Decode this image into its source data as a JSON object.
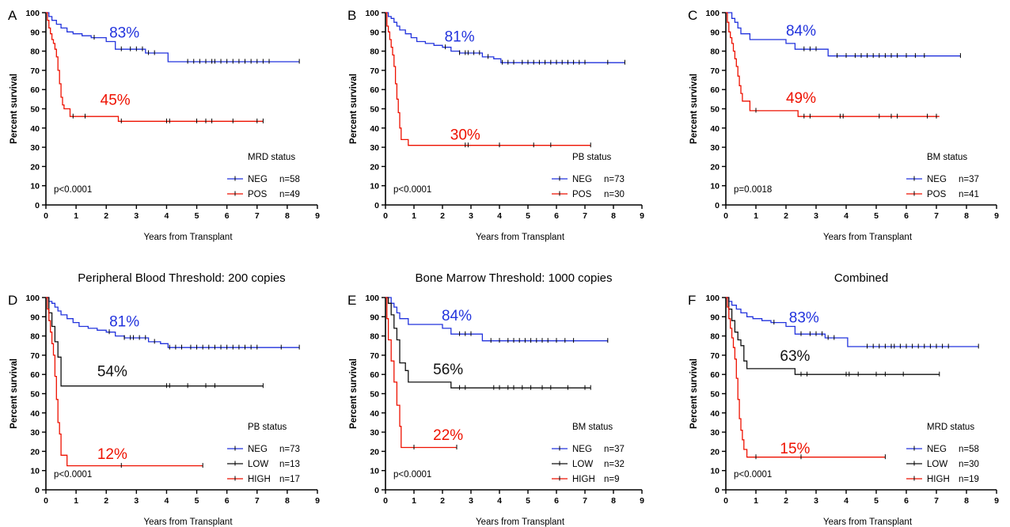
{
  "colors": {
    "NEG": "#2233dd",
    "POS": "#ee1100",
    "HIGH": "#ee1100",
    "LOW": "#111111"
  },
  "chart_data": [
    {
      "panel": "A",
      "type": "line",
      "title": "",
      "xlabel": "Years from Transplant",
      "ylabel": "Percent survival",
      "xlim": [
        0,
        9
      ],
      "ylim": [
        0,
        100
      ],
      "xticks": [
        0,
        1,
        2,
        3,
        4,
        5,
        6,
        7,
        8,
        9
      ],
      "yticks": [
        0,
        10,
        20,
        30,
        40,
        50,
        60,
        70,
        80,
        90,
        100
      ],
      "legend_title": "MRD status",
      "pvalue": "p<0.0001",
      "series": [
        {
          "name": "NEG",
          "n_label": "n=58",
          "color_key": "NEG",
          "annotation": "83%",
          "annotation_at": [
            2.6,
            87
          ],
          "x": [
            0,
            0.1,
            0.2,
            0.35,
            0.5,
            0.7,
            0.9,
            1.2,
            1.5,
            2.0,
            2.3,
            2.6,
            3.3,
            4.05,
            8.4
          ],
          "y": [
            100,
            98,
            96,
            94,
            92,
            90,
            89,
            88,
            87,
            85,
            81,
            81,
            79,
            74.5,
            74.5
          ],
          "censor": [
            1.6,
            2.5,
            2.8,
            3.0,
            3.2,
            3.4,
            3.6,
            4.7,
            4.9,
            5.1,
            5.3,
            5.5,
            5.6,
            5.8,
            6.0,
            6.2,
            6.4,
            6.6,
            6.8,
            7.0,
            7.2,
            7.4,
            8.4
          ]
        },
        {
          "name": "POS",
          "n_label": "n=49",
          "color_key": "POS",
          "annotation": "45%",
          "annotation_at": [
            2.3,
            52
          ],
          "x": [
            0,
            0.05,
            0.1,
            0.15,
            0.2,
            0.25,
            0.3,
            0.35,
            0.4,
            0.45,
            0.5,
            0.55,
            0.6,
            0.7,
            0.8,
            2.4,
            7.2
          ],
          "y": [
            100,
            96,
            92,
            89,
            86,
            84,
            81,
            77,
            70,
            63,
            56,
            52,
            50,
            50,
            46,
            43.5,
            43.5
          ],
          "censor": [
            0.9,
            1.3,
            2.5,
            4.0,
            4.1,
            5.0,
            5.3,
            5.5,
            6.2,
            7.0,
            7.2
          ]
        }
      ]
    },
    {
      "panel": "B",
      "type": "line",
      "title": "",
      "xlabel": "Years from Transplant",
      "ylabel": "Percent survival",
      "xlim": [
        0,
        9
      ],
      "ylim": [
        0,
        100
      ],
      "xticks": [
        0,
        1,
        2,
        3,
        4,
        5,
        6,
        7,
        8,
        9
      ],
      "yticks": [
        0,
        10,
        20,
        30,
        40,
        50,
        60,
        70,
        80,
        90,
        100
      ],
      "legend_title": "PB status",
      "pvalue": "p<0.0001",
      "series": [
        {
          "name": "NEG",
          "n_label": "n=73",
          "color_key": "NEG",
          "annotation": "81%",
          "annotation_at": [
            2.6,
            85
          ],
          "x": [
            0,
            0.1,
            0.2,
            0.3,
            0.4,
            0.5,
            0.7,
            0.9,
            1.1,
            1.4,
            1.7,
            2.0,
            2.3,
            2.6,
            3.0,
            3.4,
            3.8,
            4.05,
            8.4
          ],
          "y": [
            100,
            98,
            97,
            95,
            93,
            91,
            89,
            87,
            85,
            84,
            83,
            82,
            80,
            79,
            79,
            77,
            76,
            74,
            74
          ],
          "censor": [
            2.1,
            2.6,
            2.8,
            2.9,
            3.1,
            3.3,
            3.6,
            4.1,
            4.3,
            4.5,
            4.8,
            5.0,
            5.2,
            5.4,
            5.6,
            5.8,
            6.0,
            6.2,
            6.4,
            6.6,
            6.8,
            7.0,
            7.8,
            8.4
          ]
        },
        {
          "name": "POS",
          "n_label": "n=30",
          "color_key": "POS",
          "annotation": "30%",
          "annotation_at": [
            2.8,
            34
          ],
          "x": [
            0,
            0.05,
            0.1,
            0.15,
            0.2,
            0.25,
            0.3,
            0.35,
            0.4,
            0.45,
            0.5,
            0.55,
            0.6,
            0.8,
            7.2
          ],
          "y": [
            100,
            93,
            90,
            86,
            82,
            78,
            72,
            63,
            55,
            48,
            40,
            34,
            34,
            31,
            31
          ],
          "censor": [
            2.8,
            2.9,
            4.0,
            5.2,
            5.8,
            7.2
          ]
        }
      ]
    },
    {
      "panel": "C",
      "type": "line",
      "title": "",
      "xlabel": "Years from Transplant",
      "ylabel": "Percent survival",
      "xlim": [
        0,
        9
      ],
      "ylim": [
        0,
        100
      ],
      "xticks": [
        0,
        1,
        2,
        3,
        4,
        5,
        6,
        7,
        8,
        9
      ],
      "yticks": [
        0,
        10,
        20,
        30,
        40,
        50,
        60,
        70,
        80,
        90,
        100
      ],
      "legend_title": "BM status",
      "pvalue": "p=0.0018",
      "series": [
        {
          "name": "NEG",
          "n_label": "n=37",
          "color_key": "NEG",
          "annotation": "84%",
          "annotation_at": [
            2.5,
            88
          ],
          "x": [
            0,
            0.2,
            0.3,
            0.4,
            0.5,
            0.6,
            0.8,
            2.0,
            2.3,
            3.4,
            7.8
          ],
          "y": [
            100,
            97,
            95,
            92,
            89,
            89,
            86,
            84,
            81,
            77.5,
            77.5
          ],
          "censor": [
            2.6,
            2.8,
            3.0,
            3.7,
            4.0,
            4.3,
            4.5,
            4.7,
            4.9,
            5.1,
            5.3,
            5.5,
            5.7,
            6.0,
            6.3,
            6.6,
            7.8
          ]
        },
        {
          "name": "POS",
          "n_label": "n=41",
          "color_key": "POS",
          "annotation": "49%",
          "annotation_at": [
            2.5,
            53
          ],
          "x": [
            0,
            0.05,
            0.1,
            0.15,
            0.2,
            0.25,
            0.3,
            0.35,
            0.4,
            0.45,
            0.5,
            0.55,
            0.6,
            0.8,
            2.4,
            7.1
          ],
          "y": [
            100,
            95,
            90,
            87,
            84,
            80,
            76,
            72,
            67,
            62,
            58,
            54,
            54,
            49,
            46,
            46
          ],
          "censor": [
            1.0,
            2.6,
            2.8,
            3.8,
            3.9,
            5.1,
            5.5,
            5.7,
            6.7,
            7.0
          ]
        }
      ]
    },
    {
      "panel": "D",
      "type": "line",
      "title": "Peripheral Blood Threshold: 200 copies",
      "xlabel": "Years from Transplant",
      "ylabel": "Percent survival",
      "xlim": [
        0,
        9
      ],
      "ylim": [
        0,
        100
      ],
      "xticks": [
        0,
        1,
        2,
        3,
        4,
        5,
        6,
        7,
        8,
        9
      ],
      "yticks": [
        0,
        10,
        20,
        30,
        40,
        50,
        60,
        70,
        80,
        90,
        100
      ],
      "legend_title": "PB status",
      "pvalue": "p<0.0001",
      "series": [
        {
          "name": "NEG",
          "n_label": "n=73",
          "color_key": "NEG",
          "annotation": "81%",
          "annotation_at": [
            2.6,
            85
          ],
          "x": [
            0,
            0.1,
            0.2,
            0.3,
            0.4,
            0.5,
            0.7,
            0.9,
            1.1,
            1.4,
            1.7,
            2.0,
            2.3,
            2.6,
            3.0,
            3.4,
            3.8,
            4.05,
            8.4
          ],
          "y": [
            100,
            98,
            97,
            95,
            93,
            91,
            89,
            87,
            85,
            84,
            83,
            82,
            80,
            79,
            79,
            77,
            76,
            74,
            74
          ],
          "censor": [
            2.1,
            2.6,
            2.8,
            2.9,
            3.1,
            3.3,
            3.6,
            4.1,
            4.3,
            4.5,
            4.8,
            5.0,
            5.2,
            5.4,
            5.6,
            5.8,
            6.0,
            6.2,
            6.4,
            6.6,
            6.8,
            7.0,
            7.8,
            8.4
          ]
        },
        {
          "name": "LOW",
          "n_label": "n=13",
          "color_key": "LOW",
          "annotation": "54%",
          "annotation_at": [
            2.2,
            59
          ],
          "x": [
            0,
            0.1,
            0.2,
            0.3,
            0.4,
            0.5,
            7.2
          ],
          "y": [
            100,
            92,
            85,
            77,
            69,
            54,
            54
          ],
          "censor": [
            4.0,
            4.1,
            4.7,
            5.3,
            5.6,
            7.2
          ]
        },
        {
          "name": "HIGH",
          "n_label": "n=17",
          "color_key": "HIGH",
          "annotation": "12%",
          "annotation_at": [
            2.2,
            16
          ],
          "x": [
            0,
            0.05,
            0.1,
            0.15,
            0.2,
            0.25,
            0.3,
            0.35,
            0.4,
            0.45,
            0.5,
            0.7,
            5.2
          ],
          "y": [
            100,
            94,
            88,
            82,
            76,
            70,
            59,
            47,
            35,
            29,
            18,
            12.5,
            12.5
          ],
          "censor": [
            2.5,
            5.2
          ]
        }
      ]
    },
    {
      "panel": "E",
      "type": "line",
      "title": "Bone Marrow Threshold: 1000 copies",
      "xlabel": "Years from Transplant",
      "ylabel": "Percent survival",
      "xlim": [
        0,
        9
      ],
      "ylim": [
        0,
        100
      ],
      "xticks": [
        0,
        1,
        2,
        3,
        4,
        5,
        6,
        7,
        8,
        9
      ],
      "yticks": [
        0,
        10,
        20,
        30,
        40,
        50,
        60,
        70,
        80,
        90,
        100
      ],
      "legend_title": "BM status",
      "pvalue": "p<0.0001",
      "series": [
        {
          "name": "NEG",
          "n_label": "n=37",
          "color_key": "NEG",
          "annotation": "84%",
          "annotation_at": [
            2.5,
            88
          ],
          "x": [
            0,
            0.2,
            0.3,
            0.4,
            0.5,
            0.6,
            0.8,
            2.0,
            2.3,
            3.4,
            7.8
          ],
          "y": [
            100,
            97,
            95,
            92,
            89,
            89,
            86,
            84,
            81,
            77.5,
            77.5
          ],
          "censor": [
            2.6,
            2.8,
            3.0,
            3.7,
            4.0,
            4.3,
            4.5,
            4.7,
            4.9,
            5.1,
            5.3,
            5.5,
            5.7,
            6.0,
            6.3,
            6.6,
            7.8
          ]
        },
        {
          "name": "LOW",
          "n_label": "n=32",
          "color_key": "LOW",
          "annotation": "56%",
          "annotation_at": [
            2.2,
            60
          ],
          "x": [
            0,
            0.1,
            0.2,
            0.3,
            0.4,
            0.5,
            0.7,
            0.8,
            2.3,
            7.2
          ],
          "y": [
            100,
            97,
            91,
            84,
            78,
            66,
            62,
            56,
            53,
            53
          ],
          "censor": [
            2.6,
            2.8,
            3.8,
            4.0,
            4.3,
            4.5,
            4.8,
            5.1,
            5.5,
            5.8,
            6.4,
            7.0,
            7.2
          ]
        },
        {
          "name": "HIGH",
          "n_label": "n=9",
          "color_key": "HIGH",
          "annotation": "22%",
          "annotation_at": [
            2.2,
            26
          ],
          "x": [
            0,
            0.05,
            0.1,
            0.2,
            0.3,
            0.4,
            0.5,
            0.55,
            2.5
          ],
          "y": [
            100,
            89,
            78,
            67,
            56,
            44,
            33,
            22,
            22
          ],
          "censor": [
            1.0,
            2.5
          ]
        }
      ]
    },
    {
      "panel": "F",
      "type": "line",
      "title": "Combined",
      "xlabel": "Years from Transplant",
      "ylabel": "Percent survival",
      "xlim": [
        0,
        9
      ],
      "ylim": [
        0,
        100
      ],
      "xticks": [
        0,
        1,
        2,
        3,
        4,
        5,
        6,
        7,
        8,
        9
      ],
      "yticks": [
        0,
        10,
        20,
        30,
        40,
        50,
        60,
        70,
        80,
        90,
        100
      ],
      "legend_title": "MRD status",
      "pvalue": "p<0.0001",
      "series": [
        {
          "name": "NEG",
          "n_label": "n=58",
          "color_key": "NEG",
          "annotation": "83%",
          "annotation_at": [
            2.6,
            87
          ],
          "x": [
            0,
            0.1,
            0.2,
            0.35,
            0.5,
            0.7,
            0.9,
            1.2,
            1.5,
            2.0,
            2.3,
            2.6,
            3.3,
            4.05,
            8.4
          ],
          "y": [
            100,
            98,
            96,
            94,
            92,
            90,
            89,
            88,
            87,
            85,
            81,
            81,
            79,
            74.5,
            74.5
          ],
          "censor": [
            1.6,
            2.5,
            2.8,
            3.0,
            3.2,
            3.4,
            3.6,
            4.7,
            4.9,
            5.1,
            5.3,
            5.5,
            5.6,
            5.8,
            6.0,
            6.2,
            6.4,
            6.6,
            6.8,
            7.0,
            7.2,
            7.4,
            8.4
          ]
        },
        {
          "name": "LOW",
          "n_label": "n=30",
          "color_key": "LOW",
          "annotation": "63%",
          "annotation_at": [
            2.3,
            67
          ],
          "x": [
            0,
            0.1,
            0.2,
            0.3,
            0.4,
            0.5,
            0.6,
            0.7,
            2.3,
            7.1
          ],
          "y": [
            100,
            94,
            88,
            82,
            78,
            75,
            67,
            63,
            60,
            60
          ],
          "censor": [
            2.5,
            2.7,
            4.0,
            4.1,
            4.4,
            5.0,
            5.3,
            5.9,
            7.1
          ]
        },
        {
          "name": "HIGH",
          "n_label": "n=19",
          "color_key": "HIGH",
          "annotation": "15%",
          "annotation_at": [
            2.3,
            19
          ],
          "x": [
            0,
            0.05,
            0.1,
            0.15,
            0.2,
            0.25,
            0.3,
            0.35,
            0.4,
            0.45,
            0.5,
            0.55,
            0.6,
            0.7,
            1.0,
            5.3
          ],
          "y": [
            100,
            95,
            89,
            84,
            79,
            74,
            68,
            58,
            47,
            37,
            31,
            26,
            21,
            17,
            17,
            17
          ],
          "censor": [
            1.0,
            2.5,
            5.3
          ]
        }
      ]
    }
  ]
}
